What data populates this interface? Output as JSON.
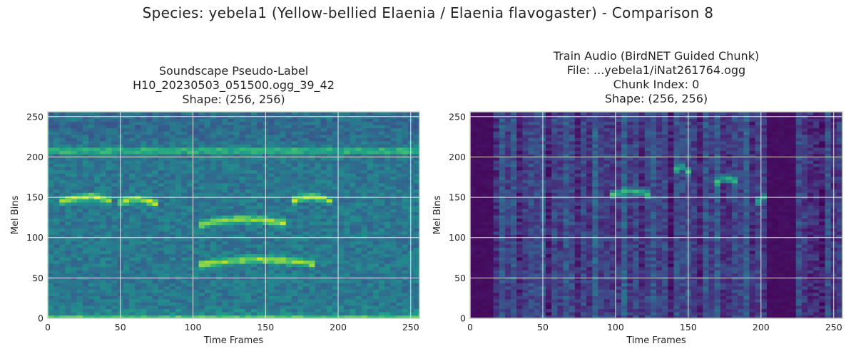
{
  "figure": {
    "suptitle": "Species: yebela1 (Yellow-bellied Elaenia / Elaenia flavogaster) - Comparison 8"
  },
  "chart_data": [
    {
      "type": "heatmap",
      "title_lines": [
        "Soundscape Pseudo-Label",
        "H10_20230503_051500.ogg_39_42",
        "Shape: (256, 256)"
      ],
      "xlabel": "Time Frames",
      "ylabel": "Mel Bins",
      "xlim": [
        0,
        256
      ],
      "ylim": [
        0,
        256
      ],
      "xticks": [
        0,
        50,
        100,
        150,
        200,
        250
      ],
      "yticks": [
        0,
        50,
        100,
        150,
        200,
        250
      ],
      "grid": true,
      "colormap": "viridis",
      "features": {
        "background_level": 0.4,
        "bright_bands_y": [
          208,
          0
        ],
        "calls": [
          {
            "x_range": [
              10,
              45
            ],
            "y_center": 148
          },
          {
            "x_range": [
              48,
              75
            ],
            "y_center": 145
          },
          {
            "x_range": [
              168,
              195
            ],
            "y_center": 148
          },
          {
            "x_range": [
              105,
              165
            ],
            "y_center": 120
          },
          {
            "x_range": [
              105,
              185
            ],
            "y_center": 70
          }
        ]
      }
    },
    {
      "type": "heatmap",
      "title_lines": [
        "Train Audio (BirdNET Guided Chunk)",
        "File: ...yebela1/iNat261764.ogg",
        "Chunk Index: 0",
        "Shape: (256, 256)"
      ],
      "xlabel": "Time Frames",
      "ylabel": "Mel Bins",
      "xlim": [
        0,
        256
      ],
      "ylim": [
        0,
        256
      ],
      "xticks": [
        0,
        50,
        100,
        150,
        200,
        250
      ],
      "yticks": [
        0,
        50,
        100,
        150,
        200,
        250
      ],
      "grid": true,
      "colormap": "viridis",
      "features": {
        "background_level": 0.2,
        "silent_x_ranges": [
          [
            0,
            18
          ],
          [
            205,
            225
          ]
        ],
        "calls": [
          {
            "x_range": [
              95,
              125
            ],
            "y_center": 155
          },
          {
            "x_range": [
              140,
              150
            ],
            "y_center": 185
          },
          {
            "x_range": [
              168,
              185
            ],
            "y_center": 170
          },
          {
            "x_range": [
              198,
              205
            ],
            "y_center": 148
          }
        ]
      }
    }
  ]
}
